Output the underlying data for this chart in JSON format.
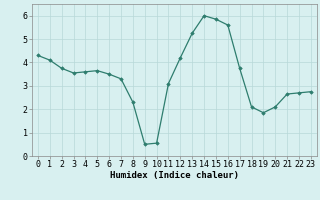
{
  "x": [
    0,
    1,
    2,
    3,
    4,
    5,
    6,
    7,
    8,
    9,
    10,
    11,
    12,
    13,
    14,
    15,
    16,
    17,
    18,
    19,
    20,
    21,
    22,
    23
  ],
  "y": [
    4.3,
    4.1,
    3.75,
    3.55,
    3.6,
    3.65,
    3.5,
    3.3,
    2.3,
    0.5,
    0.55,
    3.1,
    4.2,
    5.25,
    6.0,
    5.85,
    5.6,
    3.75,
    2.1,
    1.85,
    2.1,
    2.65,
    2.7,
    2.75
  ],
  "line_color": "#2e7d6e",
  "marker": "D",
  "marker_size": 1.8,
  "bg_color": "#d8f0f0",
  "grid_color": "#b8d8d8",
  "xlabel": "Humidex (Indice chaleur)",
  "xlim": [
    -0.5,
    23.5
  ],
  "ylim": [
    0,
    6.5
  ],
  "yticks": [
    0,
    1,
    2,
    3,
    4,
    5,
    6
  ],
  "xticks": [
    0,
    1,
    2,
    3,
    4,
    5,
    6,
    7,
    8,
    9,
    10,
    11,
    12,
    13,
    14,
    15,
    16,
    17,
    18,
    19,
    20,
    21,
    22,
    23
  ],
  "xlabel_fontsize": 6.5,
  "tick_fontsize": 6.0,
  "line_width": 0.9
}
